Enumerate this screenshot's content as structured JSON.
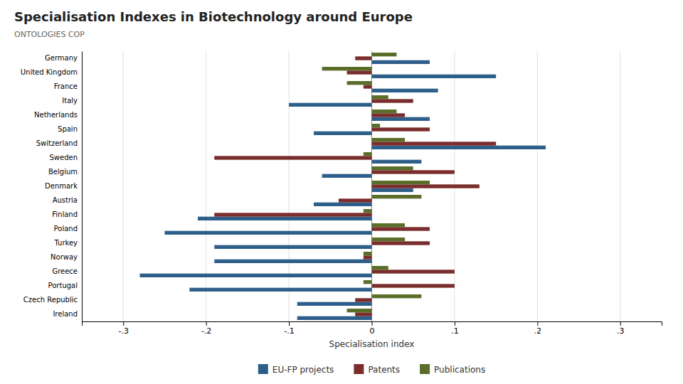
{
  "chart_data": {
    "type": "bar",
    "orientation": "horizontal",
    "title": "Specialisation Indexes in Biotechnology around Europe",
    "subtitle": "ONTOLOGIES COP",
    "x_label": "Specialisation index",
    "categories": [
      "Germany",
      "United Kingdom",
      "France",
      "Italy",
      "Netherlands",
      "Spain",
      "Switzerland",
      "Sweden",
      "Belgium",
      "Denmark",
      "Austria",
      "Finland",
      "Poland",
      "Turkey",
      "Norway",
      "Greece",
      "Portugal",
      "Czech Republic",
      "Ireland"
    ],
    "series": [
      {
        "name": "EU-FP projects",
        "color": "#2E5F8A",
        "values": [
          0.07,
          0.15,
          0.08,
          -0.1,
          0.07,
          -0.07,
          0.21,
          0.06,
          -0.06,
          0.05,
          -0.07,
          -0.21,
          -0.25,
          -0.19,
          -0.19,
          -0.28,
          -0.22,
          -0.09,
          -0.09
        ]
      },
      {
        "name": "Patents",
        "color": "#7B2D2D",
        "values": [
          -0.02,
          -0.03,
          -0.01,
          0.05,
          0.04,
          0.07,
          0.15,
          -0.19,
          0.1,
          0.13,
          -0.04,
          -0.19,
          0.07,
          0.07,
          -0.01,
          0.1,
          0.1,
          -0.02,
          -0.02
        ]
      },
      {
        "name": "Publications",
        "color": "#5A6E2A",
        "values": [
          0.03,
          -0.06,
          -0.03,
          0.02,
          0.03,
          0.01,
          0.04,
          -0.01,
          0.05,
          0.07,
          0.06,
          -0.01,
          0.04,
          0.04,
          -0.01,
          0.02,
          -0.01,
          0.06,
          -0.03
        ]
      }
    ],
    "xlim": [
      -0.35,
      0.35
    ],
    "xticks": [
      {
        "value": -0.3,
        "label": "-.3"
      },
      {
        "value": -0.2,
        "label": "-.2"
      },
      {
        "value": -0.1,
        "label": "-.1"
      },
      0,
      {
        "value": 0.1,
        "label": ".1"
      },
      {
        "value": 0.2,
        "label": ".2"
      },
      {
        "value": 0.3,
        "label": ".3"
      }
    ],
    "grid": true,
    "legend": "bottom"
  }
}
